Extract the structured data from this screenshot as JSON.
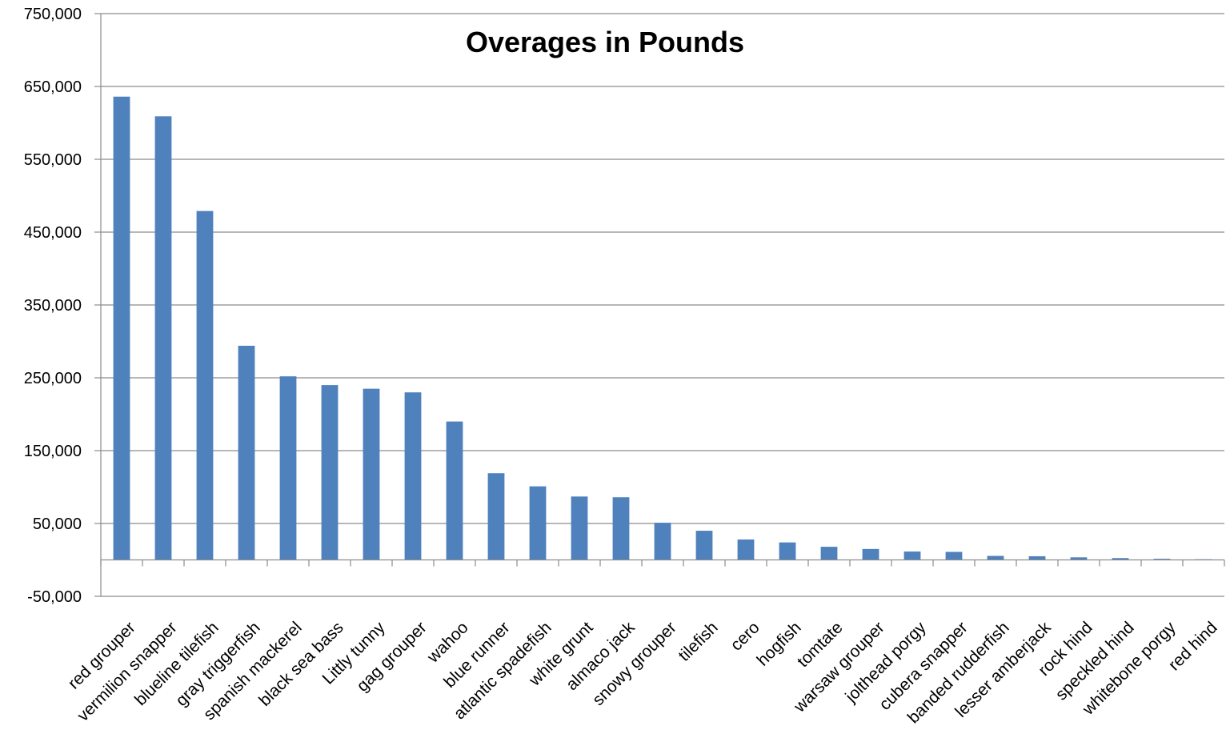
{
  "chart_data": {
    "type": "bar",
    "title": "Overages in Pounds",
    "xlabel": "",
    "ylabel": "",
    "ylim": [
      -50000,
      750000
    ],
    "yticks": [
      -50000,
      50000,
      150000,
      250000,
      350000,
      450000,
      550000,
      650000,
      750000
    ],
    "ytick_labels": [
      "-50,000",
      "50,000",
      "150,000",
      "250,000",
      "350,000",
      "450,000",
      "550,000",
      "650,000",
      "750,000"
    ],
    "grid": true,
    "legend": "none",
    "bar_color": "#4f81bd",
    "categories": [
      "red grouper",
      "vermilion snapper",
      "blueline tilefish",
      "gray triggerfish",
      "spanish mackerel",
      "black sea bass",
      "Littly tunny",
      "gag grouper",
      "wahoo",
      "blue runner",
      "atlantic spadefish",
      "white grunt",
      "almaco jack",
      "snowy grouper",
      "tilefish",
      "cero",
      "hogfish",
      "tomtate",
      "warsaw grouper",
      "jolthead porgy",
      "cubera snapper",
      "banded rudderfish",
      "lesser amberjack",
      "rock hind",
      "speckled hind",
      "whitebone porgy",
      "red hind"
    ],
    "values": [
      636000,
      609000,
      479000,
      294000,
      252000,
      240000,
      235000,
      230000,
      190000,
      119000,
      101000,
      87000,
      86000,
      51000,
      40000,
      28000,
      24000,
      18000,
      15000,
      11500,
      11000,
      5500,
      5000,
      3500,
      2500,
      1500,
      200
    ]
  }
}
